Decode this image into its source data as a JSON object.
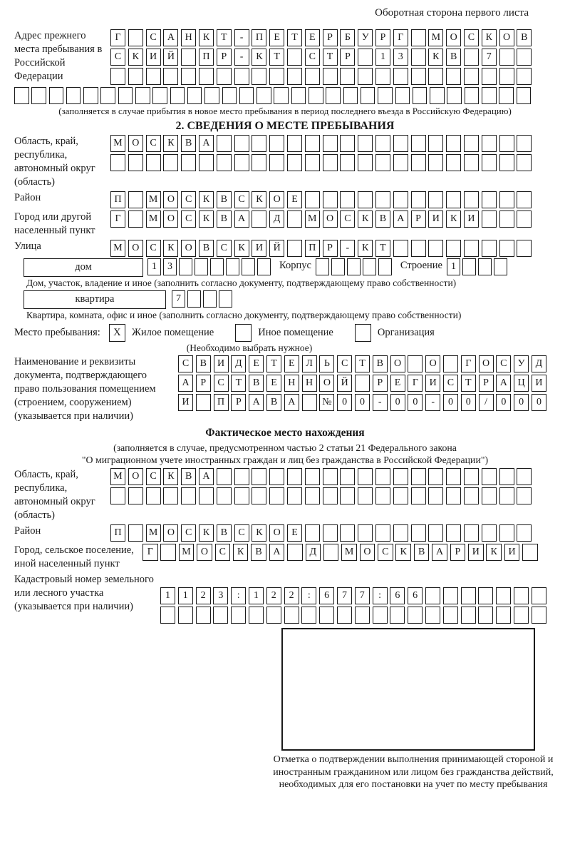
{
  "page": {
    "header_note": "Оборотная сторона первого листа"
  },
  "colors": {
    "ink": "#1a1a1a",
    "background": "#ffffff"
  },
  "prev_address": {
    "label": "Адрес прежнего места пребывания в Российской Федерации",
    "rows": [
      [
        "Г",
        "",
        "С",
        "А",
        "Н",
        "К",
        "Т",
        "-",
        "П",
        "Е",
        "Т",
        "Е",
        "Р",
        "Б",
        "У",
        "Р",
        "Г",
        "",
        "М",
        "О",
        "С",
        "К",
        "О",
        "В"
      ],
      [
        "С",
        "К",
        "И",
        "Й",
        "",
        "П",
        "Р",
        "-",
        "К",
        "Т",
        "",
        "С",
        "Т",
        "Р",
        "",
        "1",
        "3",
        "",
        "К",
        "В",
        "",
        "7",
        "",
        ""
      ],
      [
        "",
        "",
        "",
        "",
        "",
        "",
        "",
        "",
        "",
        "",
        "",
        "",
        "",
        "",
        "",
        "",
        "",
        "",
        "",
        "",
        "",
        "",
        "",
        ""
      ]
    ],
    "full_row": [
      "",
      "",
      "",
      "",
      "",
      "",
      "",
      "",
      "",
      "",
      "",
      "",
      "",
      "",
      "",
      "",
      "",
      "",
      "",
      "",
      "",
      "",
      "",
      "",
      "",
      "",
      "",
      "",
      "",
      ""
    ],
    "caption": "(заполняется в случае прибытия в новое место пребывания в период последнего въезда в Российскую Федерацию)"
  },
  "section2": {
    "title": "2. СВЕДЕНИЯ О МЕСТЕ ПРЕБЫВАНИЯ",
    "region": {
      "label": "Область, край, республика, автономный округ (область)",
      "rows": [
        [
          "М",
          "О",
          "С",
          "К",
          "В",
          "А",
          "",
          "",
          "",
          "",
          "",
          "",
          "",
          "",
          "",
          "",
          "",
          "",
          "",
          "",
          "",
          "",
          "",
          ""
        ],
        [
          "",
          "",
          "",
          "",
          "",
          "",
          "",
          "",
          "",
          "",
          "",
          "",
          "",
          "",
          "",
          "",
          "",
          "",
          "",
          "",
          "",
          "",
          "",
          ""
        ]
      ]
    },
    "district": {
      "label": "Район",
      "row": [
        "П",
        "",
        "М",
        "О",
        "С",
        "К",
        "В",
        "С",
        "К",
        "О",
        "Е",
        "",
        "",
        "",
        "",
        "",
        "",
        "",
        "",
        "",
        "",
        "",
        "",
        ""
      ]
    },
    "city": {
      "label": "Город или другой населенный пункт",
      "row": [
        "Г",
        "",
        "М",
        "О",
        "С",
        "К",
        "В",
        "А",
        "",
        "Д",
        "",
        "М",
        "О",
        "С",
        "К",
        "В",
        "А",
        "Р",
        "И",
        "К",
        "И",
        "",
        "",
        ""
      ]
    },
    "street": {
      "label": "Улица",
      "row": [
        "М",
        "О",
        "С",
        "К",
        "О",
        "В",
        "С",
        "К",
        "И",
        "Й",
        "",
        "П",
        "Р",
        "-",
        "К",
        "Т",
        "",
        "",
        "",
        "",
        "",
        "",
        "",
        ""
      ]
    },
    "house": {
      "box_label": "дом",
      "cells": [
        "1",
        "3",
        "",
        "",
        "",
        "",
        "",
        ""
      ],
      "korpus_label": "Корпус",
      "korpus_cells": [
        "",
        "",
        "",
        "",
        ""
      ],
      "stroenie_label": "Строение",
      "stroenie_cells": [
        "1",
        "",
        "",
        ""
      ]
    },
    "house_caption": "Дом, участок, владение и иное (заполнить согласно документу, подтверждающему право собственности)",
    "apartment": {
      "box_label": "квартира",
      "cells": [
        "7",
        "",
        "",
        ""
      ]
    },
    "apartment_caption": "Квартира, комната, офис и иное (заполнить согласно документу, подтверждающему право собственности)",
    "stay_type": {
      "label": "Место пребывания:",
      "options": [
        {
          "label": "Жилое помещение",
          "mark": "X"
        },
        {
          "label": "Иное помещение",
          "mark": ""
        },
        {
          "label": "Организация",
          "mark": ""
        }
      ],
      "note": "(Необходимо выбрать нужное)"
    },
    "document": {
      "label": "Наименование и реквизиты документа, подтверждающего право пользования помещением (строением, сооружением) (указывается при наличии)",
      "rows": [
        [
          "С",
          "В",
          "И",
          "Д",
          "Е",
          "Т",
          "Е",
          "Л",
          "Ь",
          "С",
          "Т",
          "В",
          "О",
          "",
          "О",
          "",
          "Г",
          "О",
          "С",
          "У",
          "Д"
        ],
        [
          "А",
          "Р",
          "С",
          "Т",
          "В",
          "Е",
          "Н",
          "Н",
          "О",
          "Й",
          "",
          "Р",
          "Е",
          "Г",
          "И",
          "С",
          "Т",
          "Р",
          "А",
          "Ц",
          "И"
        ],
        [
          "И",
          "",
          "П",
          "Р",
          "А",
          "В",
          "А",
          "",
          "№",
          "0",
          "0",
          "-",
          "0",
          "0",
          "-",
          "0",
          "0",
          "/",
          "0",
          "0",
          "0"
        ]
      ]
    }
  },
  "actual_location": {
    "title": "Фактическое место нахождения",
    "note1": "(заполняется в случае, предусмотренном частью 2 статьи 21 Федерального закона",
    "note2": "\"О миграционном учете иностранных граждан и лиц без гражданства в Российской Федерации\")",
    "region": {
      "label": "Область, край, республика, автономный округ (область)",
      "rows": [
        [
          "М",
          "О",
          "С",
          "К",
          "В",
          "А",
          "",
          "",
          "",
          "",
          "",
          "",
          "",
          "",
          "",
          "",
          "",
          "",
          "",
          "",
          "",
          "",
          "",
          ""
        ],
        [
          "",
          "",
          "",
          "",
          "",
          "",
          "",
          "",
          "",
          "",
          "",
          "",
          "",
          "",
          "",
          "",
          "",
          "",
          "",
          "",
          "",
          "",
          "",
          ""
        ]
      ]
    },
    "district": {
      "label": "Район",
      "row": [
        "П",
        "",
        "М",
        "О",
        "С",
        "К",
        "В",
        "С",
        "К",
        "О",
        "Е",
        "",
        "",
        "",
        "",
        "",
        "",
        "",
        "",
        "",
        "",
        "",
        "",
        ""
      ]
    },
    "city": {
      "label": "Город, сельское поселение, иной населенный пункт",
      "row": [
        "Г",
        "",
        "М",
        "О",
        "С",
        "К",
        "В",
        "А",
        "",
        "Д",
        "",
        "М",
        "О",
        "С",
        "К",
        "В",
        "А",
        "Р",
        "И",
        "К",
        "И",
        ""
      ]
    },
    "cadastral": {
      "label": "Кадастровый номер земельного или лесного участка (указывается при наличии)",
      "rows": [
        [
          "1",
          "1",
          "2",
          "3",
          ":",
          "1",
          "2",
          "2",
          ":",
          "6",
          "7",
          "7",
          ":",
          "6",
          "6",
          "",
          "",
          "",
          "",
          "",
          "",
          ""
        ],
        [
          "",
          "",
          "",
          "",
          "",
          "",
          "",
          "",
          "",
          "",
          "",
          "",
          "",
          "",
          "",
          "",
          "",
          "",
          "",
          "",
          "",
          ""
        ]
      ]
    },
    "stamp_caption": "Отметка о подтверждении выполнения принимающей стороной и иностранным гражданином или лицом без гражданства действий, необходимых для его постановки на учет по месту пребывания"
  }
}
